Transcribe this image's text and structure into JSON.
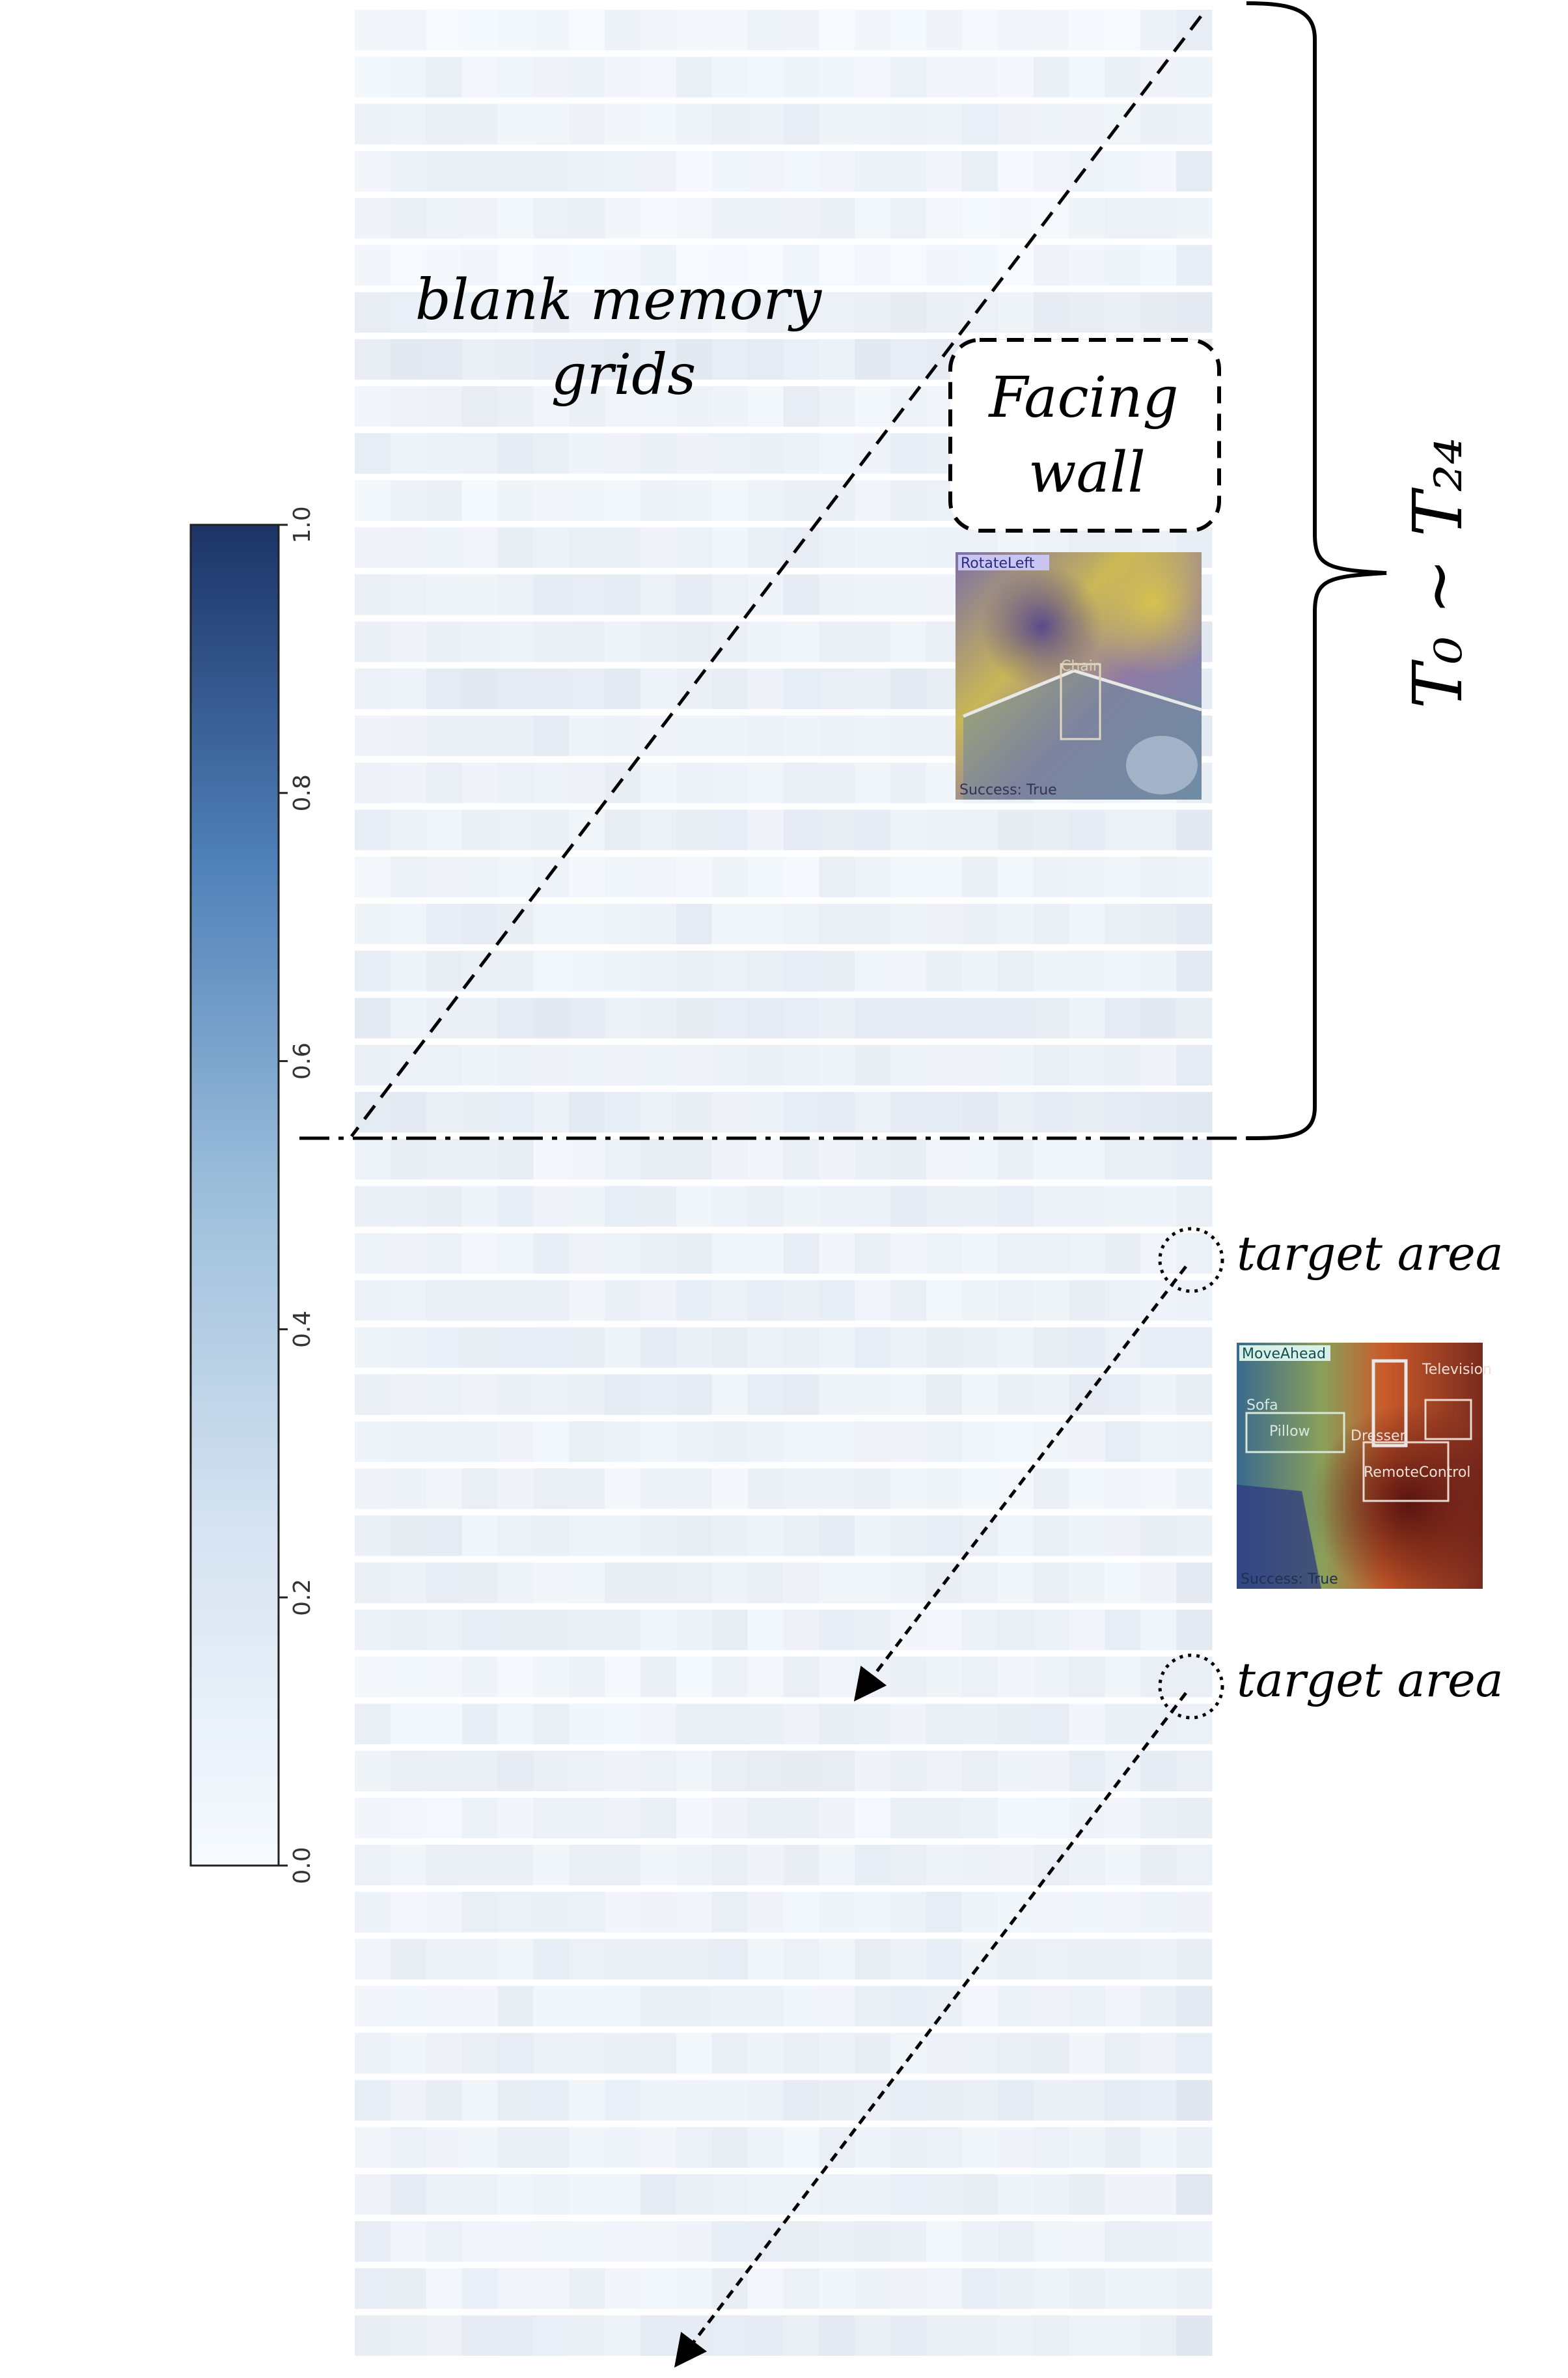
{
  "colorbar": {
    "ticks": [
      "1.0",
      "0.8",
      "0.6",
      "0.4",
      "0.2",
      "0.0"
    ],
    "min": 0.0,
    "max": 1.0,
    "color_low": "#f7fbff",
    "color_high": "#1c3366"
  },
  "annotations": {
    "blank_line1": "blank memory",
    "blank_line2": "grids",
    "facing_line1": "Facing",
    "facing_line2": "wall",
    "time_range": "T₀ ~ T₂₄",
    "target_area_1": "target area",
    "target_area_2": "target area"
  },
  "thumbnails": {
    "top": {
      "action": "RotateLeft",
      "object": "Chair",
      "status": "Success: True"
    },
    "bottom": {
      "action": "MoveAhead",
      "objects": [
        "Sofa",
        "Pillow",
        "Dresser",
        "Television",
        "RemoteControl"
      ],
      "status": "Success: True"
    }
  },
  "heatmap": {
    "rows": 50,
    "cols": 24,
    "row_values": [
      0.02,
      0.03,
      0.04,
      0.03,
      0.03,
      0.02,
      0.05,
      0.06,
      0.04,
      0.05,
      0.03,
      0.04,
      0.05,
      0.05,
      0.06,
      0.05,
      0.04,
      0.05,
      0.03,
      0.05,
      0.04,
      0.06,
      0.05,
      0.06,
      0.04,
      0.05,
      0.04,
      0.04,
      0.05,
      0.05,
      0.04,
      0.03,
      0.05,
      0.04,
      0.04,
      0.03,
      0.04,
      0.05,
      0.03,
      0.04,
      0.04,
      0.04,
      0.04,
      0.04,
      0.05,
      0.04,
      0.05,
      0.04,
      0.04,
      0.06
    ]
  }
}
